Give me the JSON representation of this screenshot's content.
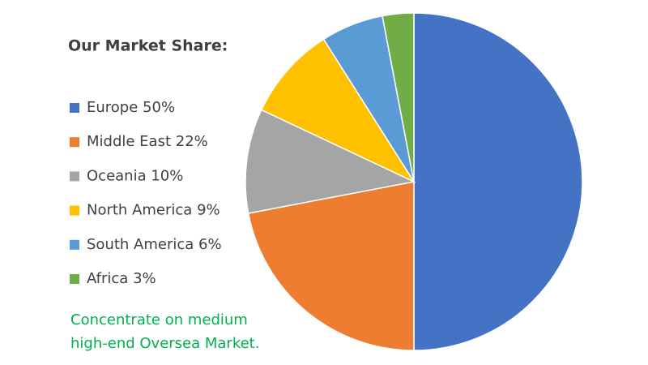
{
  "chart_data": {
    "type": "pie",
    "title": "Our Market Share:",
    "categories": [
      "Europe",
      "Middle East",
      "Oceania",
      "North America",
      "South America",
      "Africa"
    ],
    "values": [
      50,
      22,
      10,
      9,
      6,
      3
    ],
    "value_labels": [
      "50%",
      "22%",
      "10%",
      "9%",
      "6%",
      "3%"
    ],
    "colors": [
      "#4472c4",
      "#ed7d31",
      "#a5a5a5",
      "#ffc000",
      "#5b9bd5",
      "#70ad47"
    ],
    "legend": "left",
    "annotation": [
      "Concentrate on medium",
      "high-end Oversea Market."
    ]
  }
}
